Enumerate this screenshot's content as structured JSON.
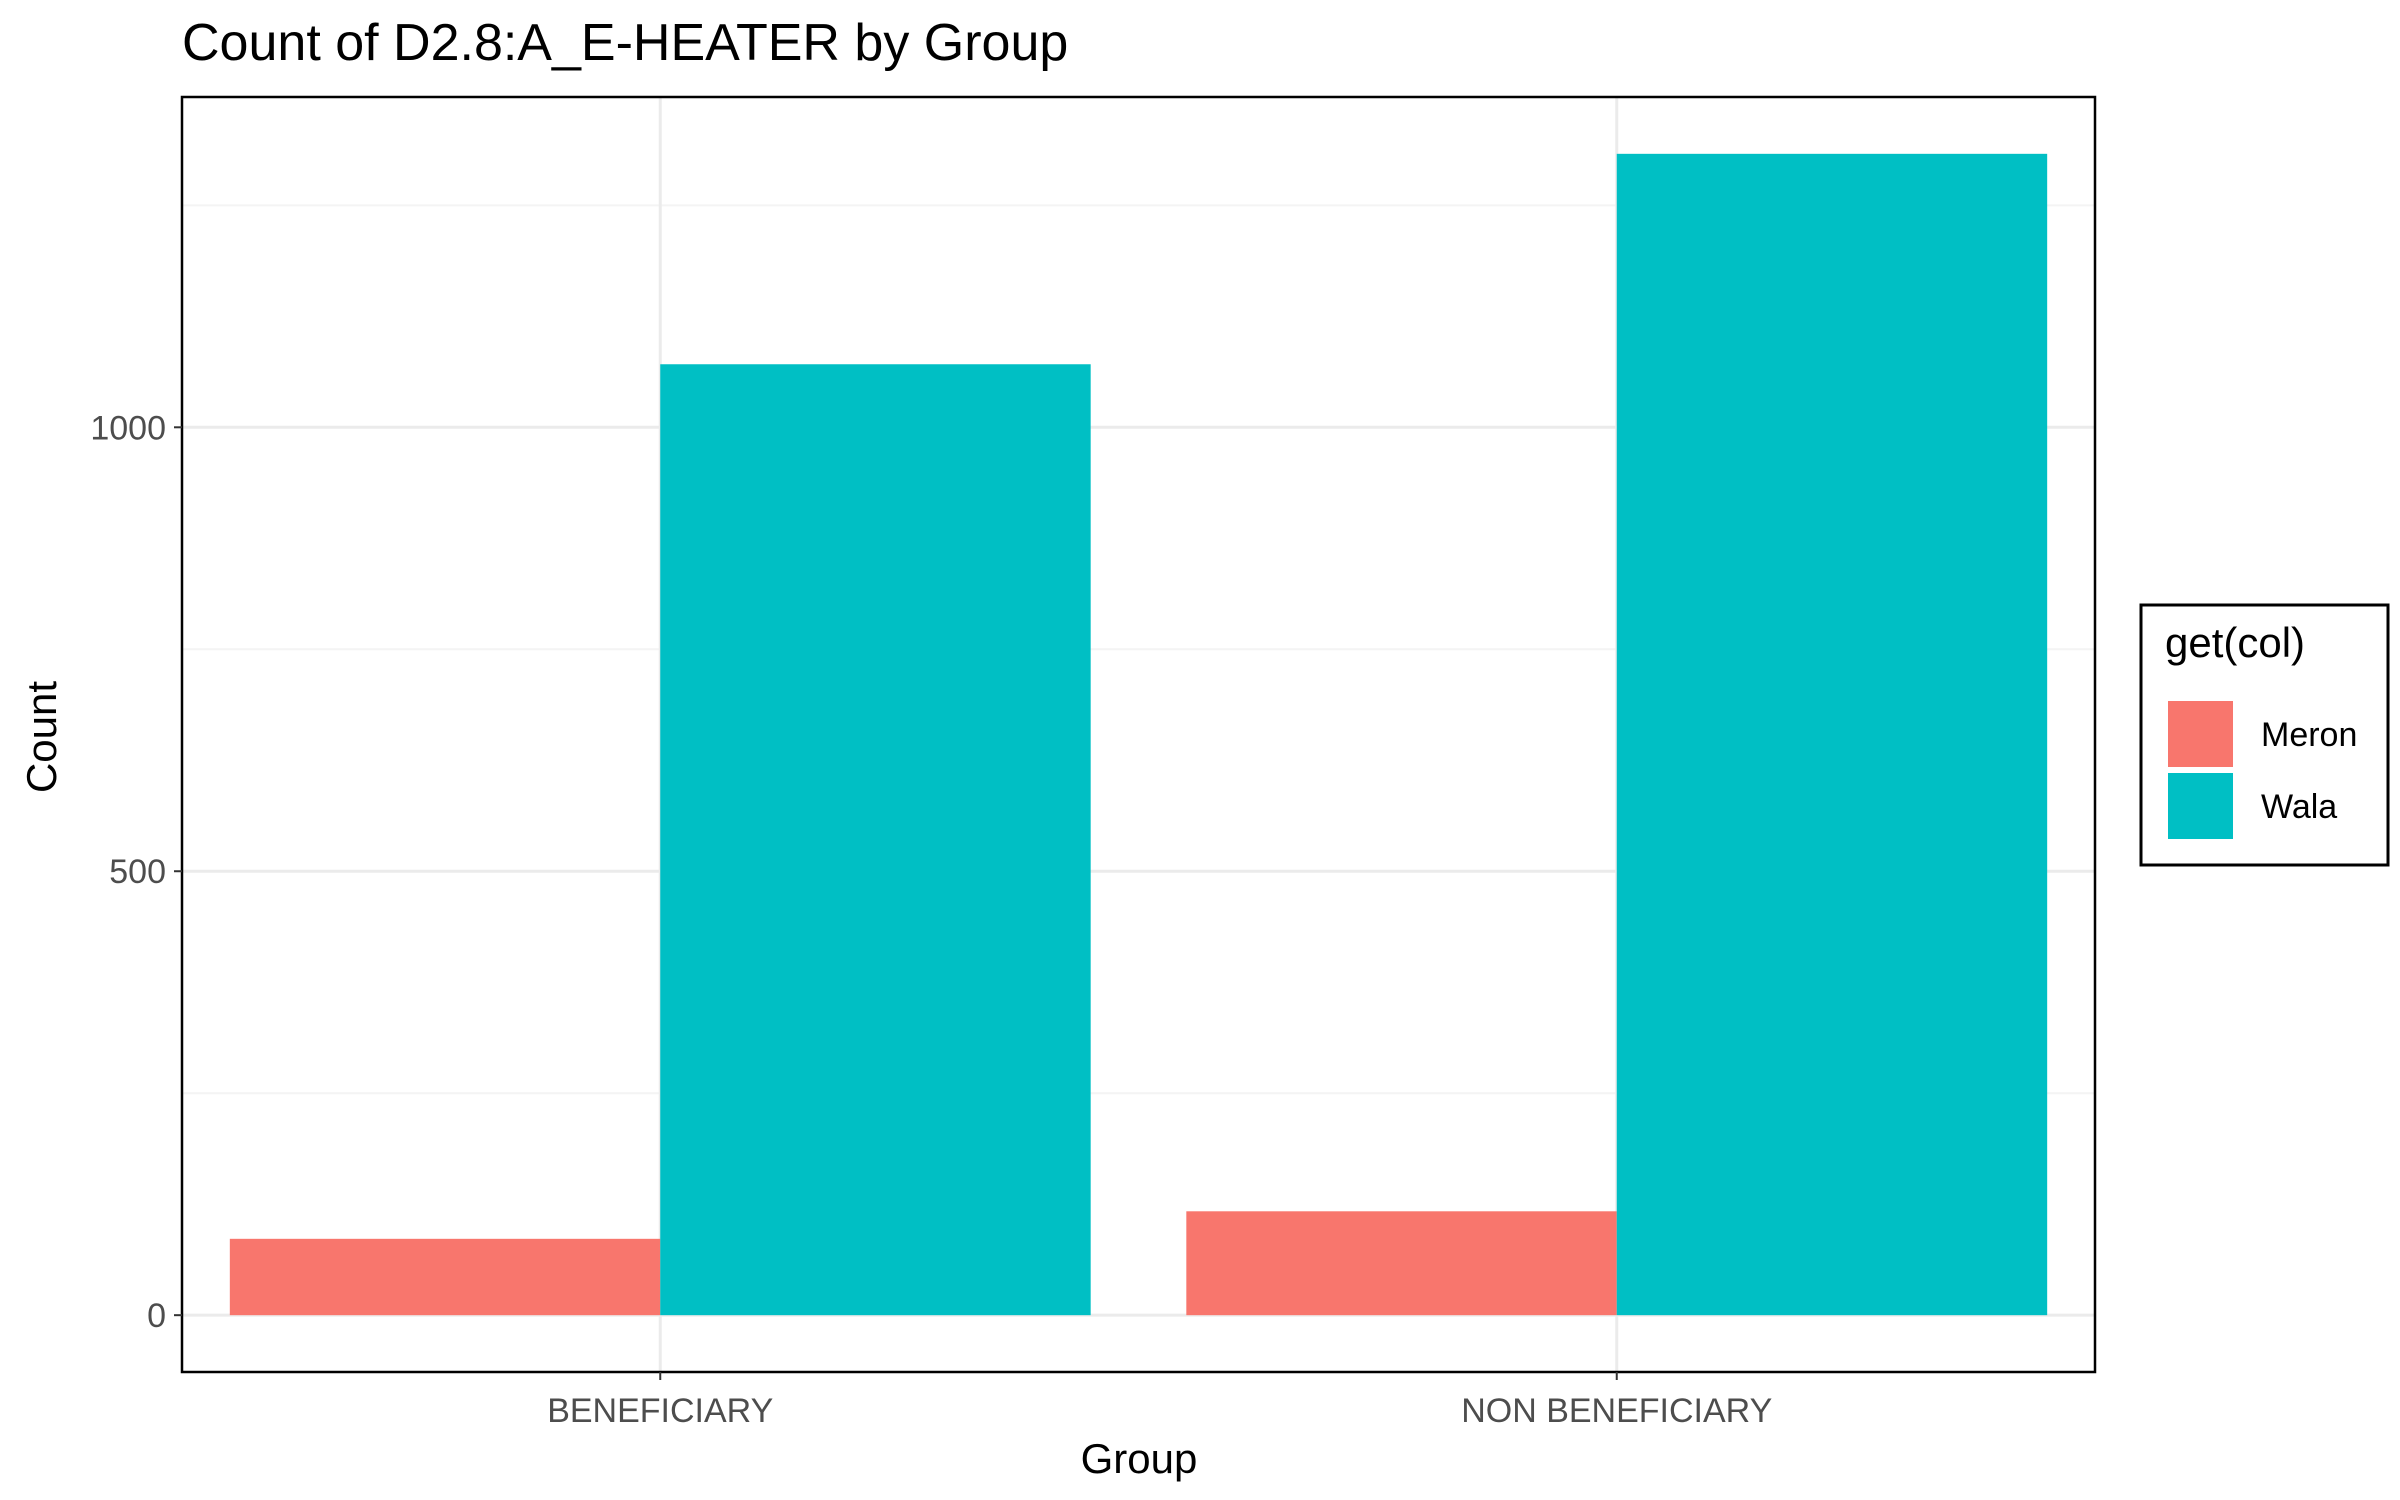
{
  "chart_data": {
    "type": "bar",
    "title": "Count of D2.8:A_E-HEATER by Group",
    "xlabel": "Group",
    "ylabel": "Count",
    "categories": [
      "BENEFICIARY",
      "NON BENEFICIARY"
    ],
    "series": [
      {
        "name": "Meron",
        "values": [
          86,
          117
        ],
        "color": "#F8766D"
      },
      {
        "name": "Wala",
        "values": [
          1071,
          1308
        ],
        "color": "#00BFC4"
      }
    ],
    "ylim": [
      -64,
      1372
    ],
    "y_major_ticks": [
      0,
      500,
      1000
    ],
    "y_minor_ticks": [
      250,
      750,
      1250
    ],
    "grid": true,
    "legend": {
      "title": "get(col)",
      "position": "right"
    },
    "colors": {
      "panel_border": "#000000",
      "grid_major": "#ebebeb",
      "grid_minor": "#f4f4f4",
      "tick_text": "#4d4d4d"
    }
  }
}
